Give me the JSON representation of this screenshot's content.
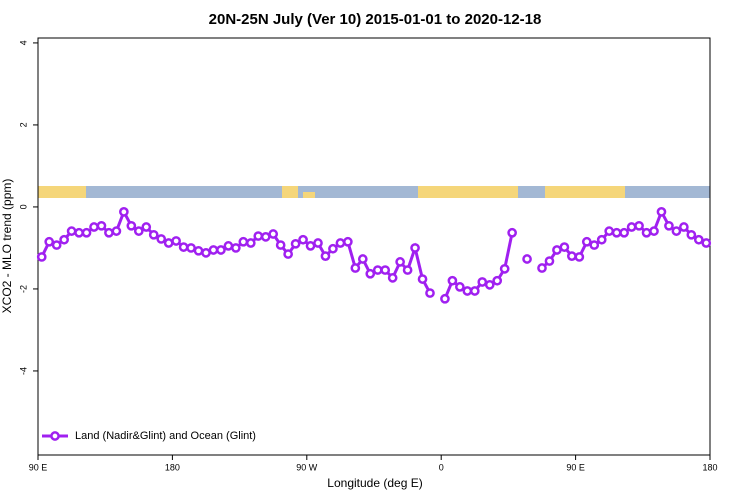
{
  "chart_data": {
    "type": "line",
    "title": "20N-25N July (Ver 10)   2015-01-01 to 2020-12-18",
    "x_label": "Longitude (deg E)",
    "y_label": "XCO2 - MLO trend (ppm)",
    "x": [
      92.5,
      97.5,
      102.5,
      107.5,
      112.5,
      117.5,
      122.5,
      127.5,
      132.5,
      137.5,
      142.5,
      147.5,
      152.5,
      157.5,
      162.5,
      167.5,
      172.5,
      177.5,
      182.5,
      187.5,
      192.5,
      197.5,
      202.5,
      207.5,
      212.5,
      217.5,
      222.5,
      227.5,
      232.5,
      237.5,
      242.5,
      247.5,
      252.5,
      257.5,
      262.5,
      267.5,
      272.5,
      277.5,
      282.5,
      287.5,
      292.5,
      297.5,
      302.5,
      307.5,
      312.5,
      317.5,
      322.5,
      327.5,
      332.5,
      337.5,
      342.5,
      347.5,
      352.5,
      357.5,
      362.5,
      367.5,
      372.5,
      377.5,
      382.5,
      387.5,
      392.5,
      397.5,
      402.5,
      407.5,
      412.5,
      417.5,
      422.5,
      427.5,
      432.5,
      437.5,
      442.5,
      447.5,
      452.5,
      457.5,
      462.5,
      467.5,
      472.5,
      477.5,
      482.5,
      487.5,
      492.5,
      497.5,
      502.5,
      507.5,
      512.5,
      517.5,
      522.5,
      527.5,
      532.5,
      537.5
    ],
    "series": [
      {
        "name": "Land (Nadir&Glint) and Ocean (Glint)",
        "color": "#a020f0",
        "values": [
          -1.22,
          -0.85,
          -0.93,
          -0.8,
          -0.59,
          -0.63,
          -0.63,
          -0.49,
          -0.46,
          -0.63,
          -0.59,
          -0.12,
          -0.46,
          -0.59,
          -0.49,
          -0.68,
          -0.78,
          -0.88,
          -0.83,
          -0.98,
          -1.0,
          -1.07,
          -1.12,
          -1.05,
          -1.05,
          -0.95,
          -1.0,
          -0.85,
          -0.88,
          -0.71,
          -0.73,
          -0.66,
          -0.93,
          -1.15,
          -0.9,
          -0.8,
          -0.95,
          -0.88,
          -1.2,
          -1.02,
          -0.88,
          -0.85,
          -1.49,
          -1.27,
          -1.63,
          -1.54,
          -1.54,
          -1.73,
          -1.34,
          -1.54,
          -1.0,
          -1.76,
          -2.1,
          null,
          -2.24,
          -1.8,
          -1.95,
          -2.05,
          -2.05,
          -1.83,
          -1.9,
          -1.8,
          -1.51,
          -0.63,
          null,
          -1.27,
          null,
          -1.49,
          -1.32,
          -1.05,
          -0.98,
          -1.2,
          -1.22,
          -0.85,
          -0.93,
          -0.8,
          -0.59,
          -0.63,
          -0.63,
          -0.49,
          -0.46,
          -0.63,
          -0.59,
          -0.12,
          -0.46,
          -0.59,
          -0.49,
          -0.68,
          -0.8,
          -0.88
        ]
      }
    ],
    "xlim": [
      90,
      540
    ],
    "xticks": [
      {
        "value": 90,
        "label": "90 E"
      },
      180,
      {
        "value": 270,
        "label": "90 W"
      },
      {
        "value": 360,
        "label": "0"
      },
      {
        "value": 450,
        "label": "90 E"
      },
      {
        "value": 540,
        "label": "180"
      }
    ],
    "ylim": [
      -6.05,
      4.12
    ],
    "yticks": [
      -4,
      -2,
      0,
      2,
      4
    ],
    "legend": "bottom-left"
  }
}
